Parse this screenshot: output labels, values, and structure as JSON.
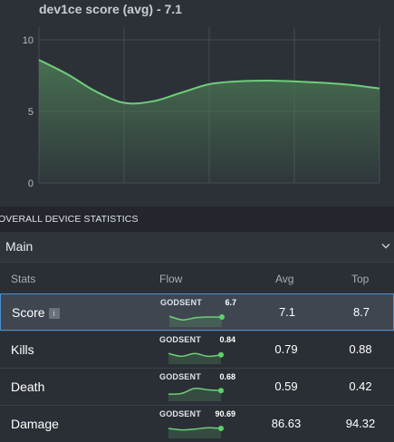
{
  "chart": {
    "title": "dev1ce score (avg) - 7.1",
    "colors": {
      "line": "#6fce7a",
      "fill_top": "#4c7a55",
      "grid": "#454b53"
    }
  },
  "chart_data": {
    "type": "area",
    "title": "dev1ce score (avg) - 7.1",
    "xlabel": "",
    "ylabel": "",
    "ylim": [
      0,
      10
    ],
    "yticks": [
      "0",
      "5",
      "10"
    ],
    "grid": true,
    "x": [
      0,
      1,
      2,
      3,
      4,
      5,
      6,
      7,
      8,
      9,
      10,
      11,
      12
    ],
    "values": [
      8.6,
      7.6,
      6.4,
      5.6,
      5.7,
      6.3,
      6.9,
      7.1,
      7.15,
      7.1,
      7.0,
      6.85,
      6.6
    ]
  },
  "overall": {
    "title": "OVERALL DEVICE STATISTICS"
  },
  "dropdown": {
    "value": "Main"
  },
  "table": {
    "headers": {
      "stats": "Stats",
      "flow": "Flow",
      "avg": "Avg",
      "top": "Top"
    },
    "rows": [
      {
        "stat": "Score",
        "info": "i",
        "team": "GODSENT",
        "flow_value": "6.7",
        "avg": "7.1",
        "top": "8.7",
        "selected": true,
        "spark": [
          0.55,
          0.3,
          0.45,
          0.5,
          0.5
        ]
      },
      {
        "stat": "Kills",
        "team": "GODSENT",
        "flow_value": "0.84",
        "avg": "0.79",
        "top": "0.88",
        "selected": false,
        "spark": [
          0.55,
          0.35,
          0.55,
          0.35,
          0.45
        ]
      },
      {
        "stat": "Death",
        "team": "GODSENT",
        "flow_value": "0.68",
        "avg": "0.59",
        "top": "0.42",
        "selected": false,
        "spark": [
          0.3,
          0.35,
          0.7,
          0.6,
          0.55
        ]
      },
      {
        "stat": "Damage",
        "team": "GODSENT",
        "flow_value": "90.69",
        "avg": "86.63",
        "top": "94.32",
        "selected": false,
        "spark": [
          0.5,
          0.4,
          0.45,
          0.55,
          0.5
        ]
      }
    ]
  }
}
